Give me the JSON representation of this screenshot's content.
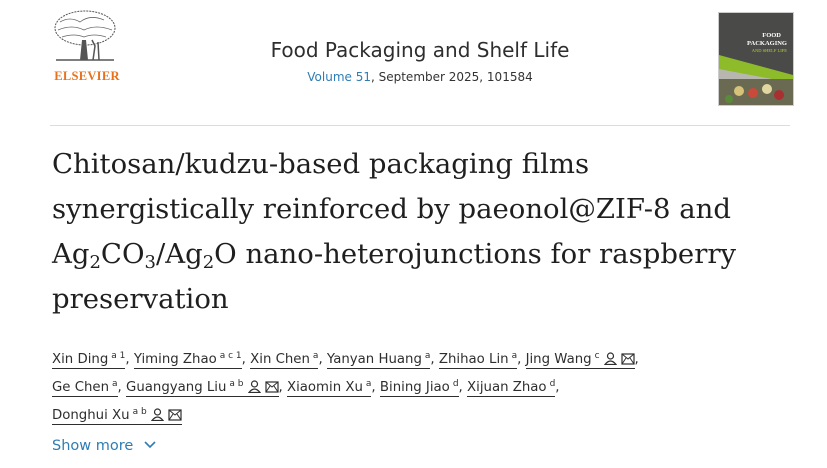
{
  "publisher": {
    "name": "ELSEVIER"
  },
  "journal": {
    "title": "Food Packaging and Shelf Life",
    "volume_link": "Volume 51",
    "volume_rest": ", September 2025, 101584",
    "cover": {
      "line1": "FOOD",
      "line2": "PACKAGING",
      "line3": "AND SHELF LIFE"
    }
  },
  "article": {
    "title_parts": [
      "Chitosan/kudzu-based packaging films synergistically reinforced by paeonol@ZIF-8 and Ag",
      "2",
      "CO",
      "3",
      "/Ag",
      "2",
      "O nano-heterojunctions for raspberry preservation"
    ]
  },
  "authors": [
    {
      "name": "Xin Ding",
      "sup": "a 1"
    },
    {
      "name": "Yiming Zhao",
      "sup": "a c 1"
    },
    {
      "name": "Xin Chen",
      "sup": "a"
    },
    {
      "name": "Yanyan Huang",
      "sup": "a"
    },
    {
      "name": "Zhihao Lin",
      "sup": "a"
    },
    {
      "name": "Jing Wang",
      "sup": "c",
      "contact": true
    },
    {
      "name": "Ge Chen",
      "sup": "a"
    },
    {
      "name": "Guangyang Liu",
      "sup": "a b",
      "contact": true
    },
    {
      "name": "Xiaomin Xu",
      "sup": "a"
    },
    {
      "name": "Bining Jiao",
      "sup": "d"
    },
    {
      "name": "Xijuan Zhao",
      "sup": "d"
    },
    {
      "name": "Donghui Xu",
      "sup": "a b",
      "contact": true
    }
  ],
  "show_more": {
    "label": "Show more",
    "icon": "chevron-down-icon"
  },
  "colors": {
    "link": "#2e7db5",
    "elsevier": "#e9711c"
  }
}
